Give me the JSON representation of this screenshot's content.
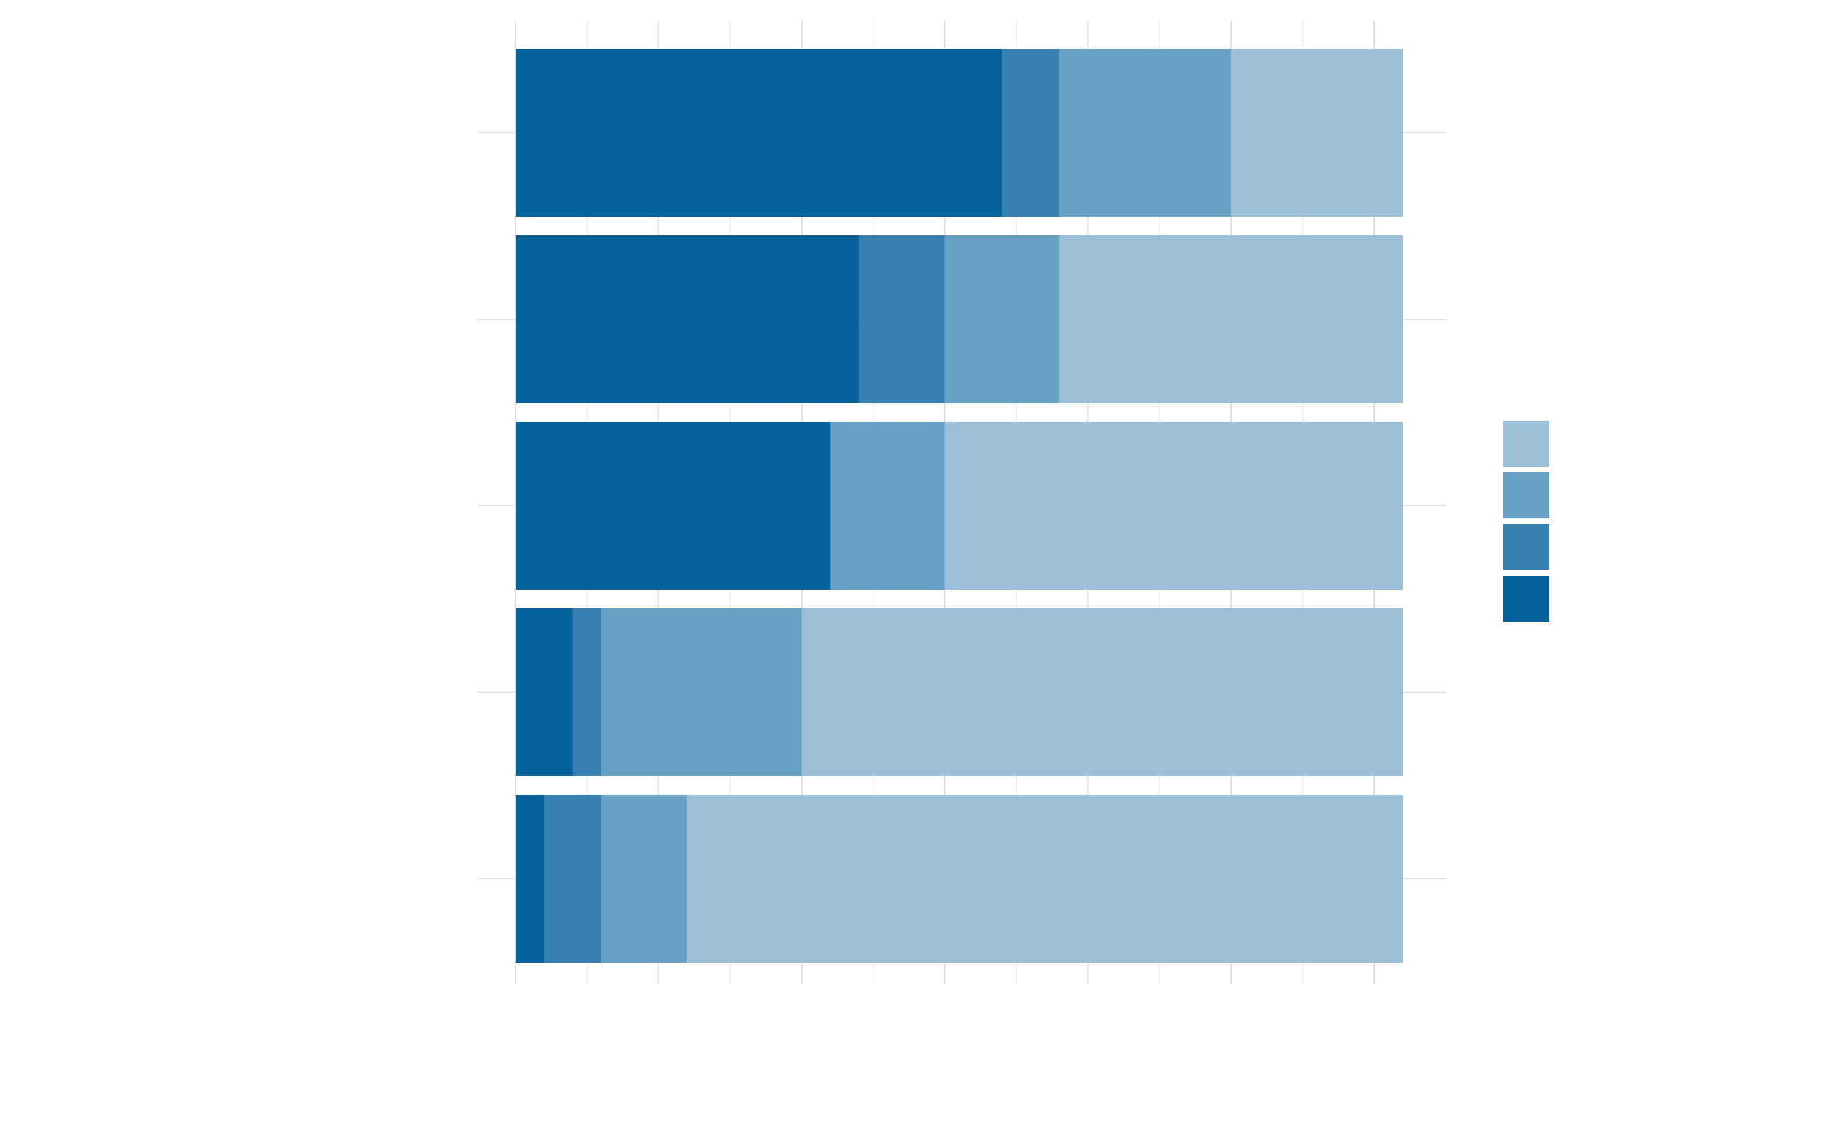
{
  "chart_data": {
    "type": "bar",
    "orientation": "horizontal",
    "stacked": true,
    "title": "",
    "xlabel": "",
    "ylabel": "",
    "categories": [
      "",
      "",
      "",
      "",
      ""
    ],
    "xlim": [
      0,
      31
    ],
    "x_ticks": [
      0,
      5,
      10,
      15,
      20,
      25,
      30
    ],
    "grid": true,
    "legend_position": "right",
    "series": [
      {
        "values": [
          17,
          12,
          11,
          2,
          1
        ],
        "color": "#05629b"
      },
      {
        "values": [
          2,
          3,
          0,
          1,
          2
        ],
        "color": "#3780b0"
      },
      {
        "values": [
          6,
          4,
          4,
          7,
          3
        ],
        "color": "#69a1c4"
      },
      {
        "values": [
          6,
          12,
          16,
          21,
          25
        ],
        "color": "#9cc0d7"
      }
    ]
  }
}
